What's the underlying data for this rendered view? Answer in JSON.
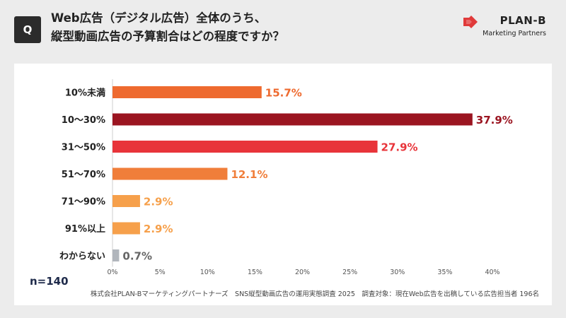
{
  "header": {
    "badge": "Q",
    "title_line1": "Web広告（デジタル広告）全体のうち、",
    "title_line2": "縦型動画広告の予算割合はどの程度ですか？"
  },
  "logo": {
    "name": "PLAN-B",
    "tagline": "Marketing Partners",
    "icon": "plan-b-logo-mark",
    "color": "#e03a3a"
  },
  "sample": "n=140",
  "source": "株式会社PLAN-Bマーケティングパートナーズ　SNS縦型動画広告の運用実態調査 2025　調査対象：現在Web広告を出稿している広告担当者 196名",
  "chart_data": {
    "type": "bar",
    "orientation": "horizontal",
    "categories": [
      "10%未満",
      "10〜30%",
      "31〜50%",
      "51〜70%",
      "71〜90%",
      "91%以上",
      "わからない"
    ],
    "values": [
      15.7,
      37.9,
      27.9,
      12.1,
      2.9,
      2.9,
      0.7
    ],
    "value_labels": [
      "15.7%",
      "37.9%",
      "27.9%",
      "12.1%",
      "2.9%",
      "2.9%",
      "0.7%"
    ],
    "colors": [
      "#ee6a2f",
      "#9b1521",
      "#e8343a",
      "#f07e3a",
      "#f6a04b",
      "#f6a04b",
      "#b1b6bc"
    ],
    "xlim": [
      0,
      40
    ],
    "x_ticks": [
      "0%",
      "5%",
      "10%",
      "15%",
      "20%",
      "25%",
      "30%",
      "35%",
      "40%"
    ],
    "grid": false
  }
}
